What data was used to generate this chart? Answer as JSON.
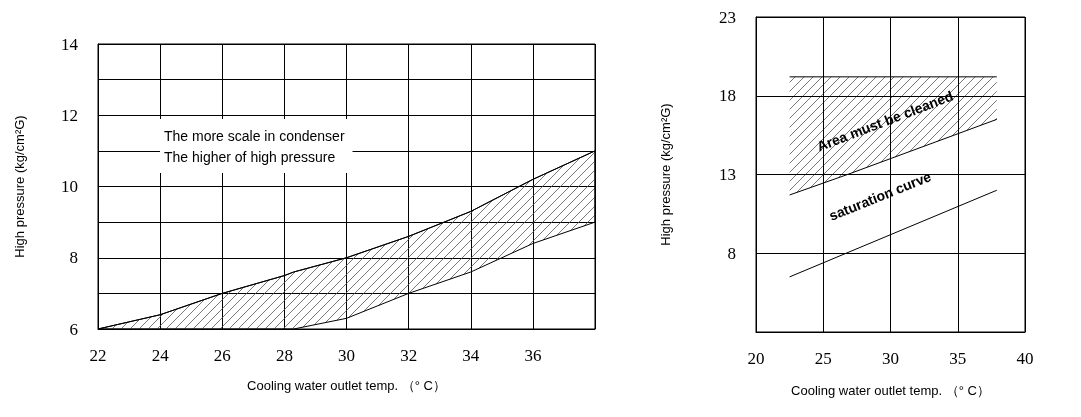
{
  "chart_data": [
    {
      "type": "line",
      "ylabel": "High pressure (kg/cm²G)",
      "xlabel": "Cooling water outlet temp. （° C）",
      "annotations": [
        "The more scale in condenser",
        "The higher of high pressure"
      ],
      "xlim": [
        22,
        38
      ],
      "xticks": [
        22,
        24,
        26,
        28,
        30,
        32,
        34,
        36,
        {
          "value": 38,
          "label": null
        }
      ],
      "ylim": [
        6,
        14
      ],
      "yticks": [
        6,
        {
          "value": 7,
          "label": null
        },
        8,
        {
          "value": 9,
          "label": null
        },
        10,
        {
          "value": 11,
          "label": null
        },
        12,
        {
          "value": 13,
          "label": null
        },
        14
      ],
      "grid": true,
      "marker": "none",
      "line_style": "solid",
      "series": [
        {
          "color": "#000000",
          "x": [
            22,
            24,
            26,
            28,
            28.3,
            30,
            32,
            34,
            36,
            38
          ],
          "values": [
            6,
            6.4,
            7,
            7.5,
            7.6,
            8,
            8.6,
            9.3,
            10.2,
            11
          ],
          "lower": [
            6,
            6,
            6,
            6,
            6,
            6.3,
            7,
            7.6,
            8.4,
            9
          ],
          "upper": [
            6,
            6.4,
            7,
            7.5,
            7.6,
            8,
            8.6,
            9.3,
            10.2,
            11
          ]
        }
      ]
    },
    {
      "type": "line",
      "ylabel": "High pressure (kg/cm²G)",
      "xlabel": "Cooling water outlet temp. （° C）",
      "annotations": [
        "Area must be cleaned",
        "saturation curve"
      ],
      "xlim": [
        20,
        40
      ],
      "xticks": [
        20,
        25,
        30,
        35,
        40
      ],
      "ylim": [
        3,
        23
      ],
      "yticks": [
        {
          "value": 3,
          "label": null
        },
        8,
        13,
        18,
        23
      ],
      "grid": true,
      "marker": "none",
      "line_style": "solid",
      "series": [
        {
          "color": "#000000",
          "x": [
            22.5,
            37.9
          ],
          "values": [
            19.2,
            19.2
          ]
        },
        {
          "color": "#000000",
          "x": [
            22.5,
            26.8,
            37.9
          ],
          "values": [
            11.7,
            13.0,
            16.5
          ]
        },
        {
          "color": "#000000",
          "x": [
            22.5,
            37.9
          ],
          "values": [
            6.5,
            12.0
          ]
        }
      ]
    }
  ]
}
